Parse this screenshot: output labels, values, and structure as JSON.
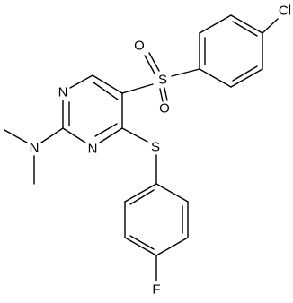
{
  "atoms": [
    "Cl",
    "S",
    "O",
    "O",
    "N",
    "N",
    "N",
    "S",
    "F"
  ]
}
